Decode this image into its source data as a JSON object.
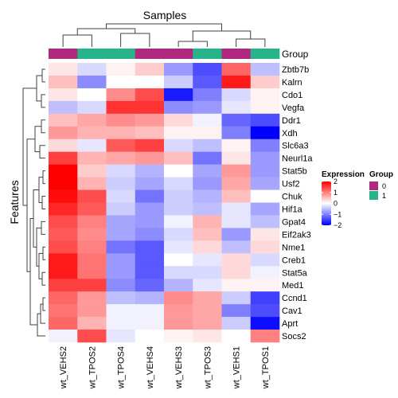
{
  "chart_data": {
    "type": "heatmap",
    "title": "Samples",
    "ylabel": "Features",
    "annotation_label": "Group",
    "columns": [
      "wt_VEHS2",
      "wt_TPOS2",
      "wt_TPOS4",
      "wt_VEHS4",
      "wt_VEHS3",
      "wt_TPOS3",
      "wt_VEHS1",
      "wt_TPOS1"
    ],
    "group_values": [
      "0",
      "1",
      "1",
      "0",
      "0",
      "1",
      "0",
      "1"
    ],
    "rows": [
      "Zbtb7b",
      "Kalrn",
      "Cdo1",
      "Vegfa",
      "Ddr1",
      "Xdh",
      "Slc6a3",
      "Neurl1a",
      "Stat5b",
      "Usf2",
      "Chuk",
      "Hif1a",
      "Gpat4",
      "Eif2ak3",
      "Nme1",
      "Creb1",
      "Stat5a",
      "Med1",
      "Ccnd1",
      "Cav1",
      "Aprt",
      "Socs2"
    ],
    "values": [
      [
        0.2,
        -0.3,
        0.1,
        0.4,
        -0.8,
        -1.4,
        1.2,
        -0.5
      ],
      [
        0.5,
        -0.9,
        0.0,
        0.0,
        -0.4,
        -1.3,
        1.8,
        0.4
      ],
      [
        0.2,
        0.0,
        0.9,
        1.4,
        -1.8,
        -1.0,
        -0.3,
        0.1
      ],
      [
        -0.5,
        -0.3,
        1.6,
        1.6,
        -0.9,
        -0.8,
        -0.2,
        0.1
      ],
      [
        0.5,
        0.7,
        0.9,
        0.8,
        0.3,
        -0.1,
        -1.2,
        -1.4
      ],
      [
        0.8,
        0.6,
        0.6,
        0.5,
        0.1,
        0.1,
        -1.0,
        -2.0
      ],
      [
        0.3,
        -0.2,
        1.3,
        1.5,
        -0.3,
        -0.5,
        0.1,
        -1.0
      ],
      [
        1.5,
        0.6,
        0.7,
        0.8,
        0.5,
        -1.1,
        0.2,
        -0.8
      ],
      [
        2.0,
        0.4,
        -0.3,
        -0.6,
        0.0,
        -0.7,
        0.8,
        -0.8
      ],
      [
        2.0,
        0.6,
        -0.4,
        -0.7,
        -0.3,
        -0.8,
        0.7,
        -0.7
      ],
      [
        1.9,
        1.4,
        -0.3,
        -1.1,
        -0.4,
        -0.6,
        0.5,
        0.0
      ],
      [
        1.7,
        1.3,
        -0.4,
        -0.8,
        -0.4,
        -0.5,
        -0.2,
        -0.7
      ],
      [
        1.4,
        1.0,
        -0.7,
        -0.8,
        -0.1,
        0.6,
        -0.2,
        -0.5
      ],
      [
        1.3,
        0.9,
        -0.7,
        -0.9,
        -0.3,
        0.5,
        -0.8,
        0.2
      ],
      [
        1.4,
        1.0,
        -1.1,
        -1.3,
        -0.2,
        0.3,
        -0.5,
        0.3
      ],
      [
        1.8,
        1.1,
        -0.8,
        -1.3,
        0.0,
        -0.2,
        0.3,
        -0.3
      ],
      [
        1.8,
        1.1,
        -0.8,
        -1.3,
        -0.3,
        -0.3,
        0.3,
        -0.1
      ],
      [
        1.5,
        1.5,
        -0.9,
        -1.2,
        -0.6,
        -0.2,
        0.1,
        0.1
      ],
      [
        1.2,
        0.8,
        -0.5,
        -0.6,
        0.9,
        0.7,
        -0.4,
        -1.5
      ],
      [
        1.1,
        0.8,
        -0.1,
        -0.1,
        0.8,
        0.7,
        -1.0,
        -1.4
      ],
      [
        1.2,
        0.6,
        -0.1,
        -0.1,
        0.8,
        0.7,
        -0.4,
        -1.9
      ],
      [
        -0.1,
        1.4,
        -0.2,
        0.0,
        0.1,
        0.2,
        0.0,
        1.0
      ]
    ],
    "color_scale": {
      "low": "#0000FF",
      "mid": "#FFFFFF",
      "high": "#FF0000",
      "range": [
        -2,
        2
      ],
      "ticks": [
        2,
        1,
        0,
        -1,
        -2
      ]
    },
    "legend": {
      "expression_title": "Expression",
      "group_title": "Group",
      "group_entries": [
        {
          "label": "0",
          "color": "#B0297E"
        },
        {
          "label": "1",
          "color": "#27B48B"
        }
      ],
      "placement": "right"
    }
  }
}
